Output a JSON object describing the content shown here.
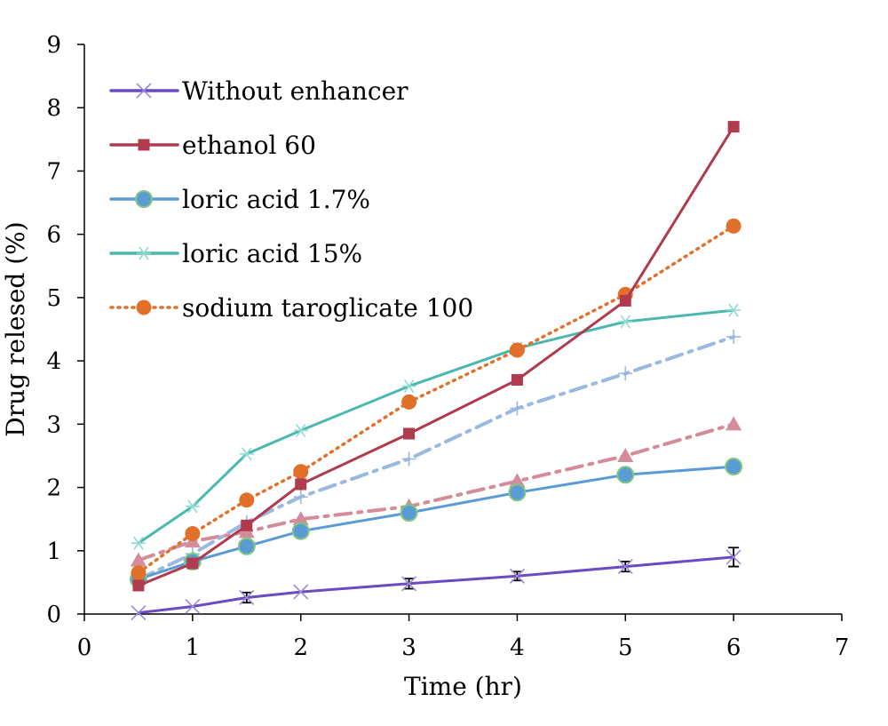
{
  "chart_data": {
    "type": "line",
    "title": "",
    "xlabel": "Time (hr)",
    "ylabel": "Drug relesed (%)",
    "xlim": [
      0,
      7
    ],
    "ylim": [
      0,
      9
    ],
    "xticks": [
      "0",
      "1",
      "2",
      "3",
      "4",
      "5",
      "6",
      "7"
    ],
    "yticks": [
      "0",
      "1",
      "2",
      "3",
      "4",
      "5",
      "6",
      "7",
      "8",
      "9"
    ],
    "grid": false,
    "legend_position": "top-left",
    "x": [
      0.5,
      1,
      1.5,
      2,
      3,
      4,
      5,
      6
    ],
    "series": [
      {
        "name": "Without enhancer",
        "color": "#6a4bc4",
        "marker": "x",
        "dash": "solid",
        "values": [
          0.02,
          0.12,
          0.26,
          0.35,
          0.48,
          0.6,
          0.75,
          0.9
        ],
        "errors": [
          0.0,
          0.0,
          0.08,
          0.0,
          0.08,
          0.07,
          0.08,
          0.15
        ]
      },
      {
        "name": "ethanol 60",
        "color": "#b03a4e",
        "marker": "square",
        "dash": "solid",
        "values": [
          0.45,
          0.8,
          1.4,
          2.05,
          2.85,
          3.7,
          4.95,
          7.7
        ]
      },
      {
        "name": "loric acid 1.7%",
        "color": "#5b9bd5",
        "marker": "circle",
        "dash": "solid",
        "values": [
          0.55,
          0.83,
          1.07,
          1.31,
          1.6,
          1.92,
          2.2,
          2.33
        ]
      },
      {
        "name": "loric acid 15%",
        "color": "#4bb8b0",
        "marker": "asterisk",
        "dash": "solid",
        "values": [
          1.12,
          1.7,
          2.53,
          2.9,
          3.6,
          4.2,
          4.62,
          4.8
        ]
      },
      {
        "name": "sodium taroglicate 100",
        "color": "#e0702a",
        "marker": "dot",
        "dash": "dotted",
        "values": [
          0.65,
          1.27,
          1.8,
          2.25,
          3.35,
          4.17,
          5.05,
          6.13
        ]
      },
      {
        "name": "",
        "color": "#9ab9e0",
        "marker": "plus",
        "dash": "dashdot",
        "values": [
          0.55,
          0.95,
          1.45,
          1.85,
          2.45,
          3.25,
          3.8,
          4.38
        ]
      },
      {
        "name": "",
        "color": "#d48c9a",
        "marker": "triangle",
        "dash": "dashdot",
        "values": [
          0.85,
          1.15,
          1.3,
          1.5,
          1.7,
          2.1,
          2.5,
          3.0
        ]
      }
    ]
  }
}
